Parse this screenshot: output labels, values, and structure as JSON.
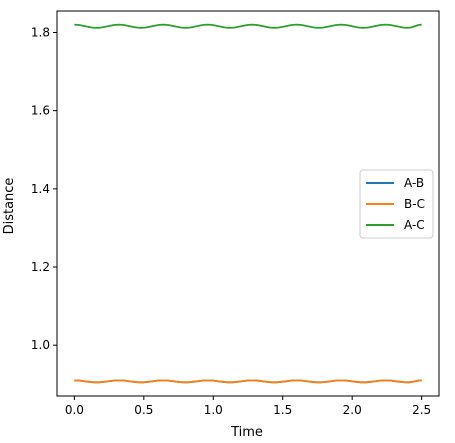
{
  "chart_data": {
    "type": "line",
    "xlabel": "Time",
    "ylabel": "Distance",
    "xlim": [
      -0.125,
      2.625
    ],
    "ylim": [
      0.87,
      1.855
    ],
    "xticks": [
      0.0,
      0.5,
      1.0,
      1.5,
      2.0,
      2.5
    ],
    "xtick_labels": [
      "0.0",
      "0.5",
      "1.0",
      "1.5",
      "2.0",
      "2.5"
    ],
    "yticks": [
      1.0,
      1.2,
      1.4,
      1.6,
      1.8
    ],
    "ytick_labels": [
      "1.0",
      "1.2",
      "1.4",
      "1.6",
      "1.8"
    ],
    "legend_position": "center-right",
    "x": [
      0.0,
      0.16,
      0.32,
      0.48,
      0.64,
      0.8,
      0.96,
      1.12,
      1.28,
      1.44,
      1.6,
      1.76,
      1.92,
      2.08,
      2.24,
      2.4,
      2.5
    ],
    "series": [
      {
        "name": "A-B",
        "color": "#1f77b4",
        "values": [
          0.91,
          0.905,
          0.91,
          0.905,
          0.91,
          0.905,
          0.91,
          0.905,
          0.91,
          0.905,
          0.91,
          0.905,
          0.91,
          0.905,
          0.91,
          0.905,
          0.91
        ]
      },
      {
        "name": "B-C",
        "color": "#ff7f0e",
        "values": [
          0.91,
          0.905,
          0.91,
          0.905,
          0.91,
          0.905,
          0.91,
          0.905,
          0.91,
          0.905,
          0.91,
          0.905,
          0.91,
          0.905,
          0.91,
          0.905,
          0.91
        ]
      },
      {
        "name": "A-C",
        "color": "#2ca02c",
        "values": [
          1.82,
          1.812,
          1.82,
          1.812,
          1.82,
          1.812,
          1.82,
          1.812,
          1.82,
          1.812,
          1.82,
          1.812,
          1.82,
          1.812,
          1.82,
          1.812,
          1.82
        ]
      }
    ]
  }
}
